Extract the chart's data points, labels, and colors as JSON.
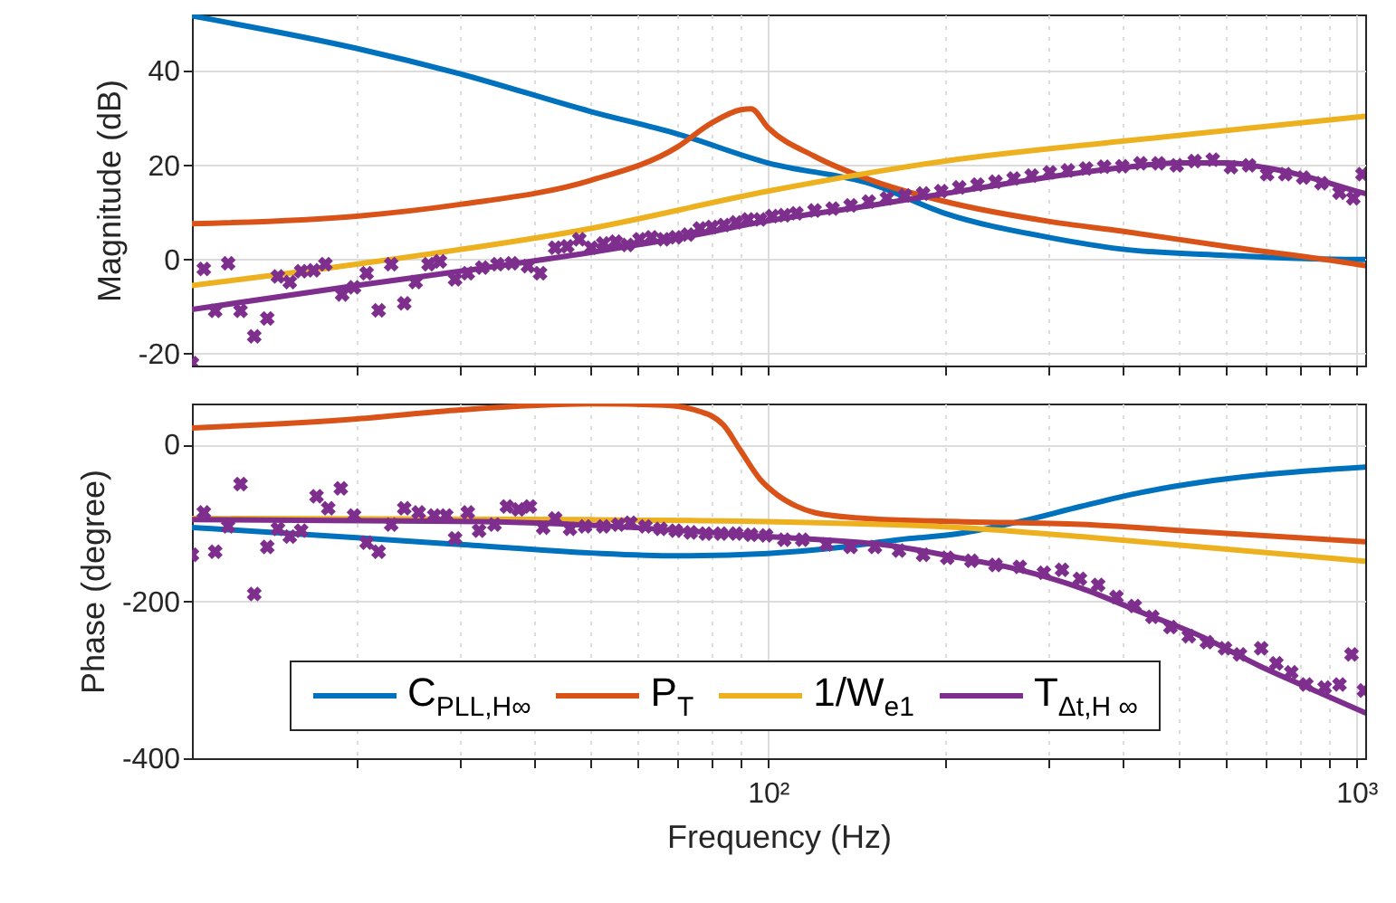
{
  "chart_data": [
    {
      "type": "line",
      "ylabel": "Magnitude (dB)",
      "xlim": [
        10.5,
        1035
      ],
      "ylim": [
        -22.5,
        52
      ],
      "log": "x",
      "grid": true,
      "tick_labels": "y",
      "xticks": [
        {
          "value": 20,
          "label": null
        },
        {
          "value": 30,
          "label": null
        },
        {
          "value": 40,
          "label": null
        },
        {
          "value": 50,
          "label": null
        },
        {
          "value": 60,
          "label": null
        },
        {
          "value": 70,
          "label": null
        },
        {
          "value": 80,
          "label": null
        },
        {
          "value": 90,
          "label": null
        },
        {
          "value": 100,
          "label": null
        },
        {
          "value": 200,
          "label": null
        },
        {
          "value": 300,
          "label": null
        },
        {
          "value": 400,
          "label": null
        },
        {
          "value": 500,
          "label": null
        },
        {
          "value": 600,
          "label": null
        },
        {
          "value": 700,
          "label": null
        },
        {
          "value": 800,
          "label": null
        },
        {
          "value": 900,
          "label": null
        },
        {
          "value": 1000,
          "label": null
        }
      ],
      "yticks": [
        -20,
        0,
        20,
        40
      ],
      "series": [
        {
          "color": "#0072bd",
          "x": [
            10.5,
            20,
            30,
            50,
            70,
            100,
            150,
            200,
            300,
            400,
            600,
            1000,
            1035
          ],
          "values": [
            51.7,
            44.8,
            39.4,
            31.4,
            26.7,
            20.5,
            16,
            9.8,
            4.7,
            2.2,
            0.9,
            0,
            0
          ]
        },
        {
          "color": "#d95319",
          "x": [
            10.5,
            20,
            30,
            50,
            70,
            80,
            90,
            93.6,
            100,
            120,
            150,
            200,
            300,
            400,
            600,
            1000,
            1035
          ],
          "values": [
            7.6,
            9.2,
            11.7,
            16.8,
            23.8,
            28.9,
            31.8,
            32,
            28,
            21.9,
            16.8,
            12.3,
            8.1,
            6,
            2.8,
            -1,
            -1.3
          ]
        },
        {
          "color": "#edb120",
          "x": [
            10.5,
            20,
            50,
            100,
            200,
            400,
            1000,
            1035
          ],
          "values": [
            -5.5,
            -1,
            6.6,
            14.5,
            20.9,
            25.1,
            30.2,
            30.4
          ]
        },
        {
          "color": "#7e2f8e",
          "x": [
            10.5,
            20,
            30,
            50,
            70,
            100,
            150,
            200,
            300,
            400,
            500,
            600,
            700,
            800,
            1000,
            1035
          ],
          "values": [
            -10.6,
            -5.5,
            -2.5,
            1.5,
            4.5,
            8.2,
            11.5,
            14,
            17.5,
            19.5,
            20.5,
            20.5,
            19.5,
            18,
            14.5,
            14
          ]
        },
        {
          "type": "scatter",
          "marker": "cross",
          "color": "#7e2f8e",
          "x": [
            10.5,
            11.0,
            12.1,
            11.5,
            12.7,
            13.4,
            14.1,
            14.7,
            15.4,
            16.1,
            16.9,
            17.7,
            18.9,
            19.8,
            20.8,
            21.8,
            22.9,
            24.1,
            25.2,
            26.5,
            27.7,
            29.4,
            30.9,
            32.7,
            34.7,
            36.7,
            39.1,
            41.0,
            43.5,
            45.6,
            47.8,
            50.1,
            52.5,
            55.1,
            57.7,
            60.5,
            63.4,
            66.5,
            69.7,
            73.1,
            76.6,
            80.3,
            84.2,
            88.3,
            92.5,
            97.0,
            101.7,
            106.6,
            111.8,
            120,
            128.8,
            138.2,
            148.4,
            159.3,
            171.0,
            183.5,
            197.0,
            211.4,
            227.0,
            243.6,
            261.5,
            280.7,
            301.3,
            323.4,
            347.2,
            372.6,
            400.0,
            429.5,
            461,
            495,
            531,
            570,
            612,
            657,
            705,
            757,
            812,
            872,
            936,
            988,
            1024
          ],
          "values": [
            -22,
            -2.0,
            -0.8,
            -10.9,
            -10.9,
            -16.3,
            -12.5,
            -3.6,
            -4.8,
            -2.5,
            -2.3,
            -1.0,
            -7.4,
            -5.9,
            -2.9,
            -10.8,
            -1.0,
            -9.3,
            -4.8,
            -1.0,
            -0.4,
            -4.2,
            -2.9,
            -1.7,
            -1.0,
            -0.8,
            -1.4,
            -2.9,
            2.5,
            2.8,
            4.3,
            2.5,
            3.4,
            3.8,
            3.1,
            4.3,
            4.7,
            4.3,
            4.7,
            5.3,
            6.6,
            6.9,
            7.3,
            7.9,
            8.5,
            8.5,
            9.2,
            9.4,
            9.8,
            10.4,
            10.8,
            11.5,
            12.3,
            13.0,
            13.6,
            14.0,
            14.5,
            15.3,
            15.9,
            16.5,
            17.2,
            17.8,
            18.5,
            18.9,
            19.3,
            19.7,
            19.8,
            20.4,
            20.4,
            20.0,
            20.9,
            21.2,
            19.6,
            20.0,
            18.1,
            18.1,
            17.4,
            16.2,
            14.2,
            13.0,
            18.1
          ]
        }
      ]
    },
    {
      "type": "line",
      "xlabel": "Frequency (Hz)",
      "ylabel": "Phase (degree)",
      "xlim": [
        10.5,
        1035
      ],
      "ylim": [
        -400,
        52
      ],
      "log": "x",
      "grid": true,
      "legend": "bottom",
      "xticks": [
        {
          "value": 20,
          "label": null
        },
        {
          "value": 30,
          "label": null
        },
        {
          "value": 40,
          "label": null
        },
        {
          "value": 50,
          "label": null
        },
        {
          "value": 60,
          "label": null
        },
        {
          "value": 70,
          "label": null
        },
        {
          "value": 80,
          "label": null
        },
        {
          "value": 90,
          "label": null
        },
        {
          "value": 100,
          "label": "10²"
        },
        {
          "value": 200,
          "label": null
        },
        {
          "value": 300,
          "label": null
        },
        {
          "value": 400,
          "label": null
        },
        {
          "value": 500,
          "label": null
        },
        {
          "value": 600,
          "label": null
        },
        {
          "value": 700,
          "label": null
        },
        {
          "value": 800,
          "label": null
        },
        {
          "value": 900,
          "label": null
        },
        {
          "value": 1000,
          "label": "10³"
        }
      ],
      "yticks": [
        -400,
        -200,
        0
      ],
      "series": [
        {
          "name": "C$_{PLL,H∞}$",
          "color": "#0072bd",
          "x": [
            10.5,
            20,
            30,
            50,
            70,
            100,
            130,
            167,
            211,
            268,
            340,
            430,
            544,
            687,
            1035
          ],
          "values": [
            -106,
            -119,
            -127.6,
            -138.4,
            -142,
            -139,
            -132,
            -121.5,
            -113.8,
            -98.4,
            -79.2,
            -61.5,
            -48.4,
            -39.2,
            -29
          ]
        },
        {
          "name": "P$_{T}$",
          "color": "#d95319",
          "x": [
            10.5,
            20,
            30,
            50,
            66.5,
            75,
            84,
            89.5,
            97,
            104,
            112,
            120,
            148,
            211,
            340,
            544,
            1035
          ],
          "values": [
            20.8,
            32.4,
            43.9,
            51.6,
            50,
            44,
            24.7,
            -6,
            -44.6,
            -65,
            -79,
            -86.9,
            -94.6,
            -98.4,
            -102,
            -111.5,
            -124
          ]
        },
        {
          "name": "1/W$_{e1}$",
          "color": "#edb120",
          "x": [
            10.5,
            50,
            100,
            211,
            340,
            544,
            1035
          ],
          "values": [
            -94.5,
            -96,
            -98.4,
            -106,
            -117.6,
            -130.7,
            -149
          ]
        },
        {
          "name": "T$_{Δt,H ∞}$",
          "color": "#7e2f8e",
          "x": [
            10.5,
            32.7,
            100,
            167,
            211,
            268,
            340,
            430,
            544,
            687,
            872,
            1035
          ],
          "values": [
            -96,
            -98.4,
            -117.6,
            -130.7,
            -144.5,
            -160,
            -183,
            -213.7,
            -244.5,
            -283,
            -317.5,
            -342
          ]
        },
        {
          "type": "scatter",
          "marker": "cross",
          "color": "#7e2f8e",
          "x": [
            10.5,
            11.0,
            11.5,
            12.1,
            12.7,
            13.4,
            14.1,
            14.7,
            15.4,
            16.1,
            17.1,
            17.9,
            18.8,
            19.8,
            20.8,
            21.8,
            22.9,
            24.1,
            25.5,
            27.1,
            28.4,
            29.4,
            30.9,
            32.3,
            34.3,
            36.0,
            37.7,
            39.4,
            41.5,
            43.5,
            46.1,
            48.9,
            52.5,
            55.7,
            58.4,
            61.9,
            65.7,
            69.7,
            73.9,
            78.4,
            83.2,
            88.3,
            93.6,
            99.3,
            106.6,
            114.4,
            125.8,
            138.2,
            152,
            167,
            183.5,
            201.7,
            221.7,
            243.6,
            267.9,
            294.4,
            316,
            339,
            364,
            391,
            420,
            450,
            483,
            519,
            557,
            598,
            634,
            689,
            731,
            775,
            822,
            883,
            936,
            981,
            1030
          ],
          "values": [
            -140.7,
            -86.8,
            -136.8,
            -104.5,
            -50.7,
            -190.7,
            -130.7,
            -107.6,
            -117.6,
            -109.9,
            -66.1,
            -81.5,
            -56.1,
            -90.7,
            -125.3,
            -136.8,
            -102.2,
            -81.5,
            -86.8,
            -90.7,
            -90.7,
            -119.9,
            -86.8,
            -109.9,
            -102.2,
            -79.2,
            -83.0,
            -79.2,
            -106.1,
            -94.5,
            -107.6,
            -104.5,
            -104.5,
            -102.2,
            -99.9,
            -104.5,
            -107.6,
            -109.9,
            -112.2,
            -113.8,
            -113.8,
            -113.8,
            -115.3,
            -116.1,
            -121.5,
            -121.5,
            -127.6,
            -130.7,
            -130.7,
            -135.3,
            -140.7,
            -144.5,
            -148.4,
            -153.7,
            -156.1,
            -163.7,
            -159.9,
            -171.4,
            -179.1,
            -194.5,
            -206.0,
            -219.9,
            -232.9,
            -244.5,
            -252.2,
            -259.9,
            -267.6,
            -259.9,
            -279.1,
            -290.6,
            -306.0,
            -309.9,
            -306.0,
            -267.6,
            -313.7
          ]
        }
      ]
    }
  ]
}
